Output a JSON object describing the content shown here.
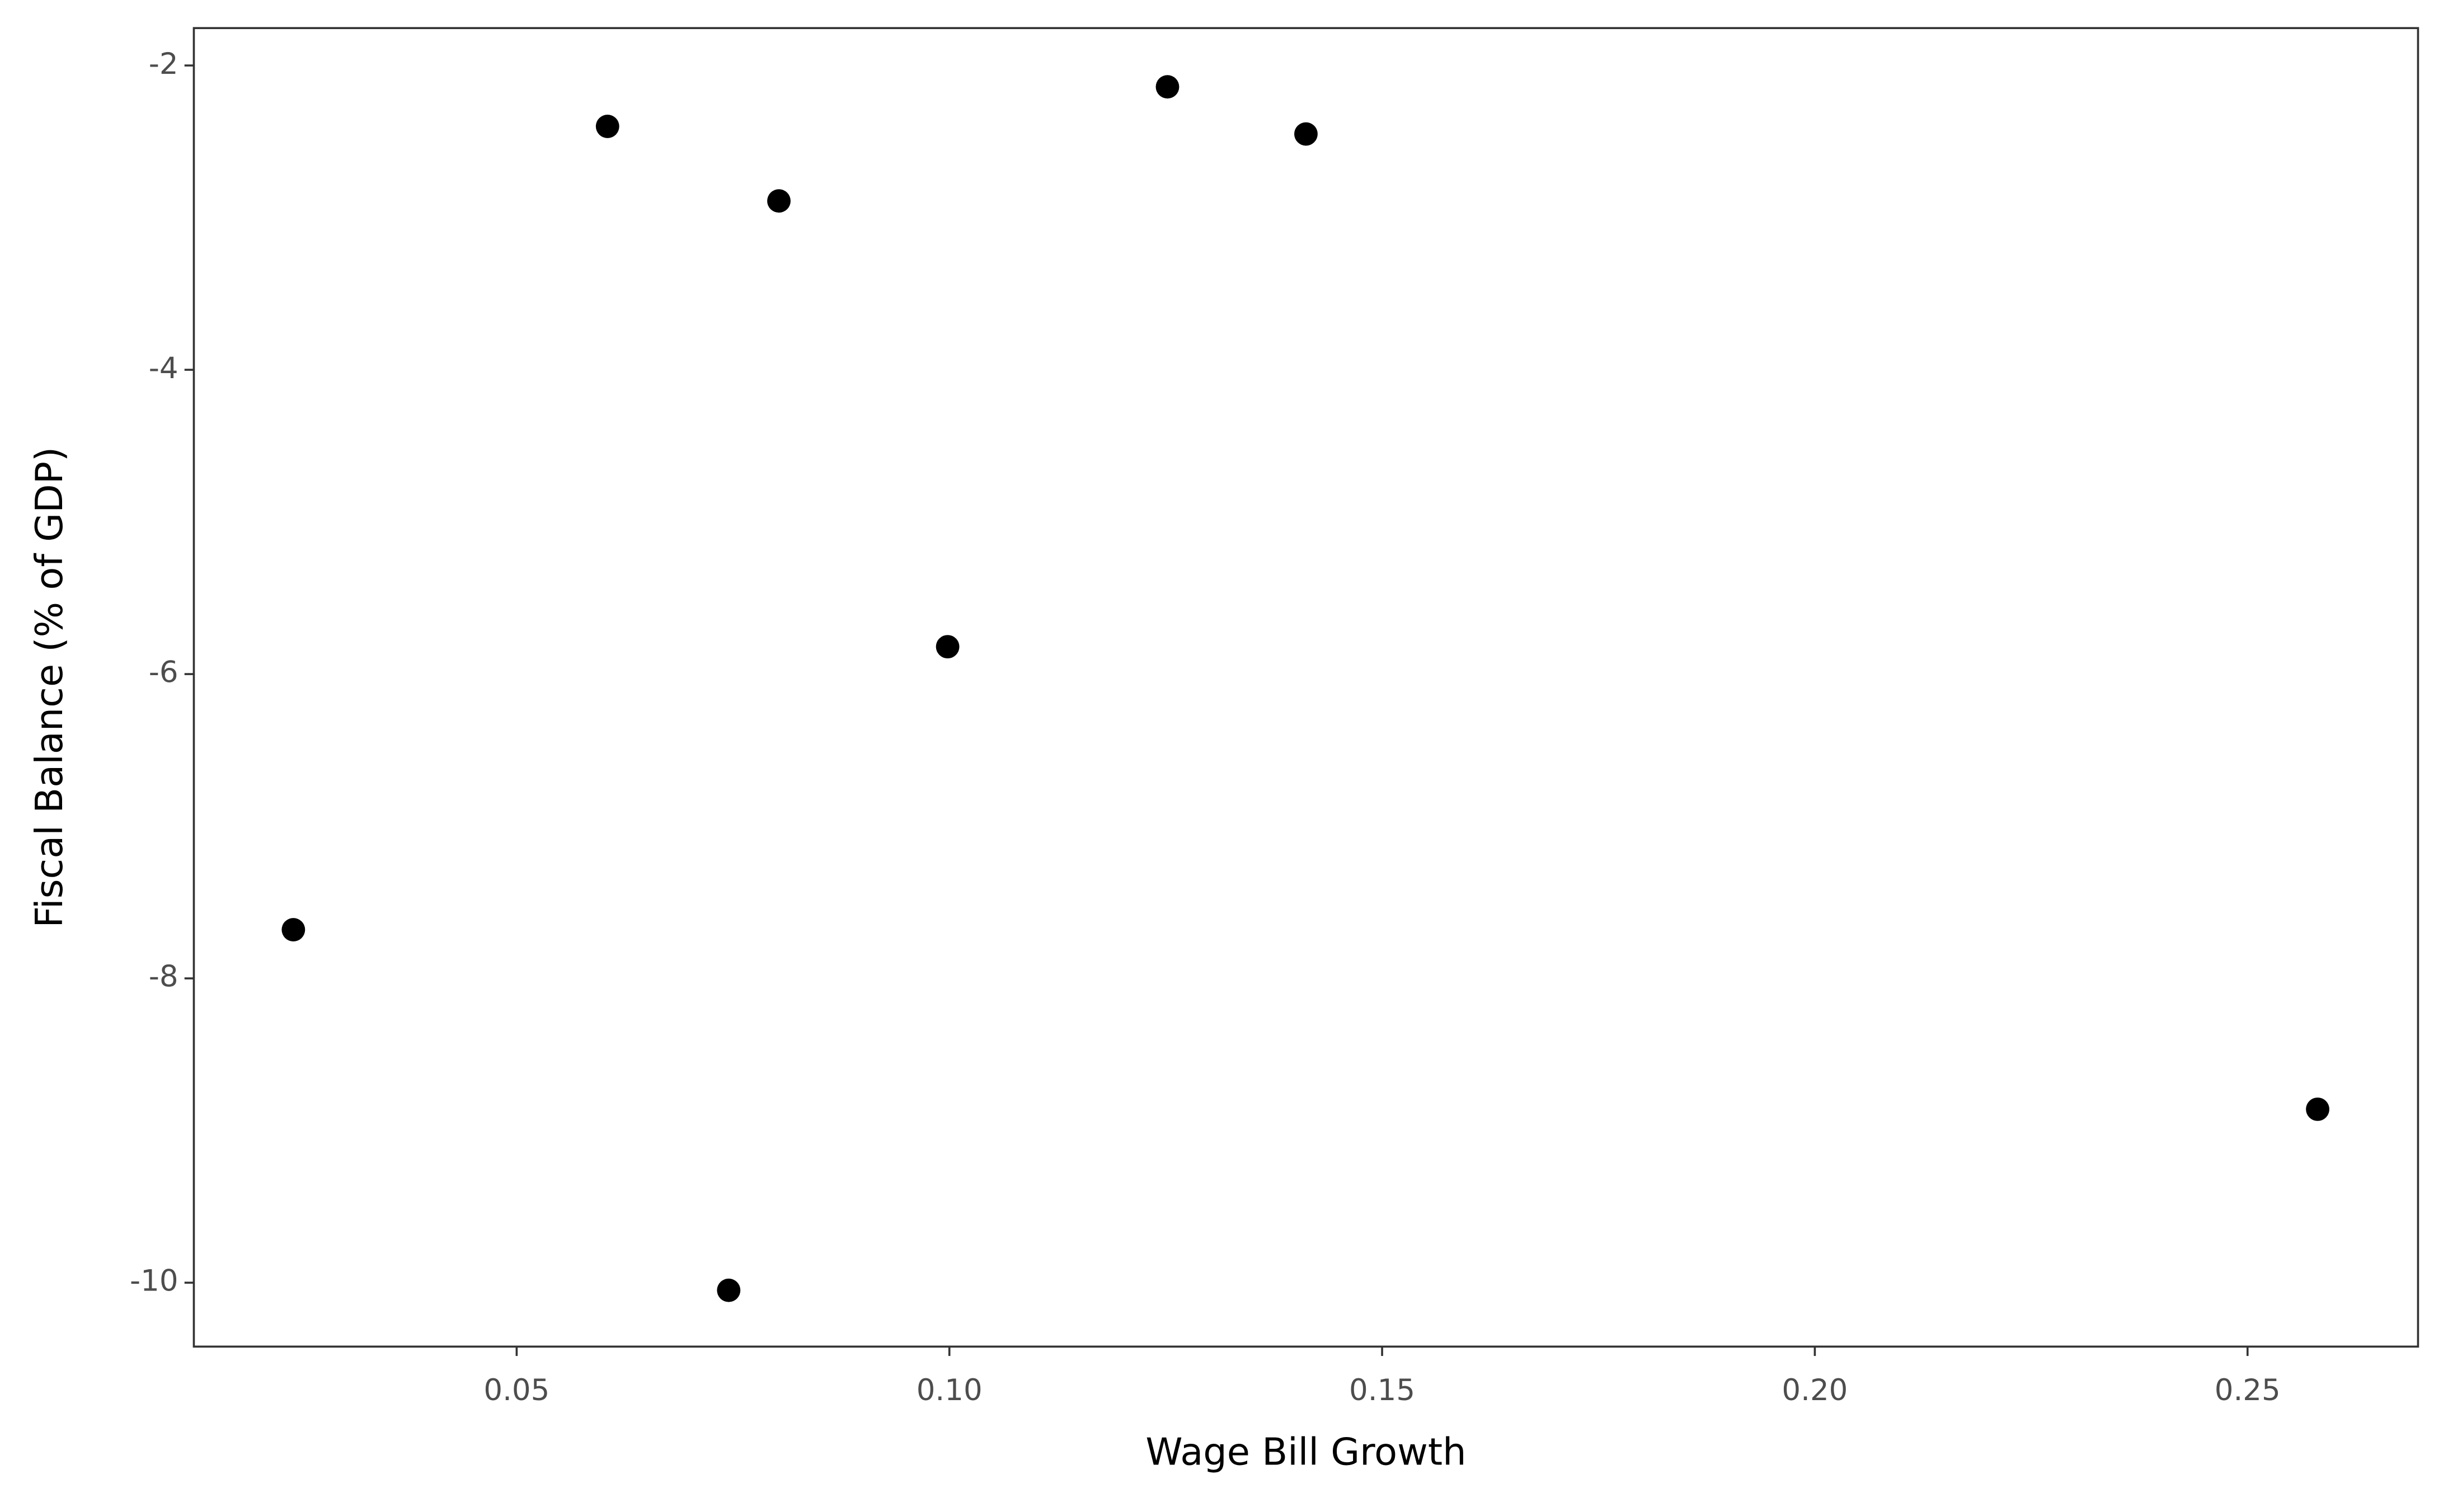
{
  "chart_data": {
    "type": "scatter",
    "x_label": "Wage Bill Growth",
    "y_label": "Fiscal Balance (% of GDP)",
    "x": [
      0.0242,
      0.0605,
      0.0803,
      0.0745,
      0.0998,
      0.1252,
      0.1412,
      0.2581
    ],
    "values": [
      -7.68,
      -2.4,
      -2.89,
      -10.05,
      -5.82,
      -2.14,
      -2.45,
      -8.86
    ],
    "color": "#000000",
    "xlim": [
      0.0127,
      0.2697
    ],
    "xticks": [
      0.05,
      {
        "value": 0.1,
        "label": "0.10"
      },
      0.15,
      {
        "value": 0.2,
        "label": "0.20"
      },
      0.25
    ],
    "ylim": [
      -10.42,
      -1.754
    ],
    "yticks": [
      -2,
      -4,
      -6,
      -8,
      -10
    ],
    "grid": false
  }
}
